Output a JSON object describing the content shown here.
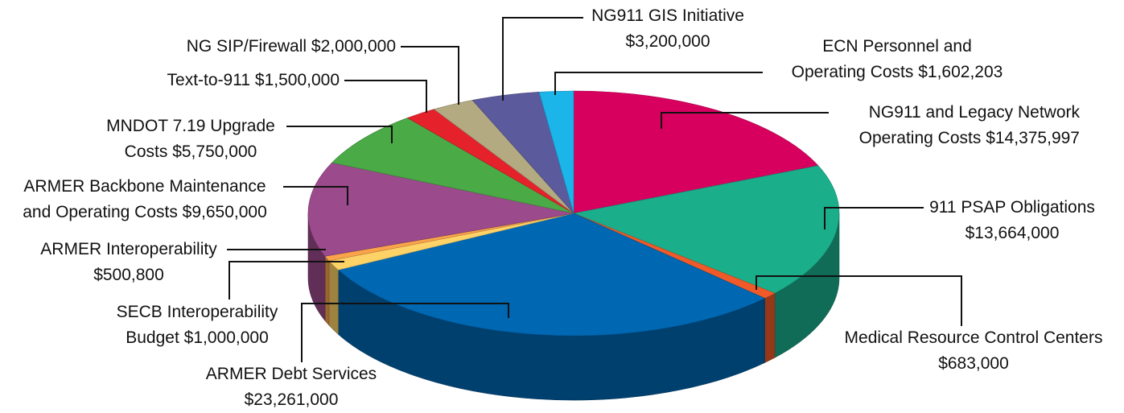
{
  "chart_data": {
    "type": "pie",
    "categories": [
      "NG911 and Legacy Network Operating Costs",
      "911 PSAP Obligations",
      "Medical Resource Control Centers",
      "ARMER Debt Services",
      "SECB Interoperability Budget",
      "ARMER Interoperability",
      "ARMER Backbone Maintenance and Operating Costs",
      "MNDOT 7.19 Upgrade Costs",
      "Text-to-911",
      "NG SIP/Firewall",
      "NG911 GIS Initiative",
      "ECN Personnel and Operating Costs"
    ],
    "values": [
      14375997,
      13664000,
      683000,
      23261000,
      1000000,
      500800,
      9650000,
      5750000,
      1500000,
      2000000,
      3200000,
      1602203
    ],
    "value_labels": [
      "$14,375,997",
      "$13,664,000",
      "$683,000",
      "$23,261,000",
      "$1,000,000",
      "$500,800",
      "$9,650,000",
      "$5,750,000",
      "$1,500,000",
      "$2,000,000",
      "$3,200,000",
      "$1,602,203"
    ],
    "colors": [
      "#d8005f",
      "#1aae8a",
      "#f05a28",
      "#0068b3",
      "#fdd267",
      "#f9a44a",
      "#9b4a8c",
      "#4aaa46",
      "#e5222b",
      "#b3aa82",
      "#5b5a9c",
      "#1bb5ea"
    ]
  }
}
